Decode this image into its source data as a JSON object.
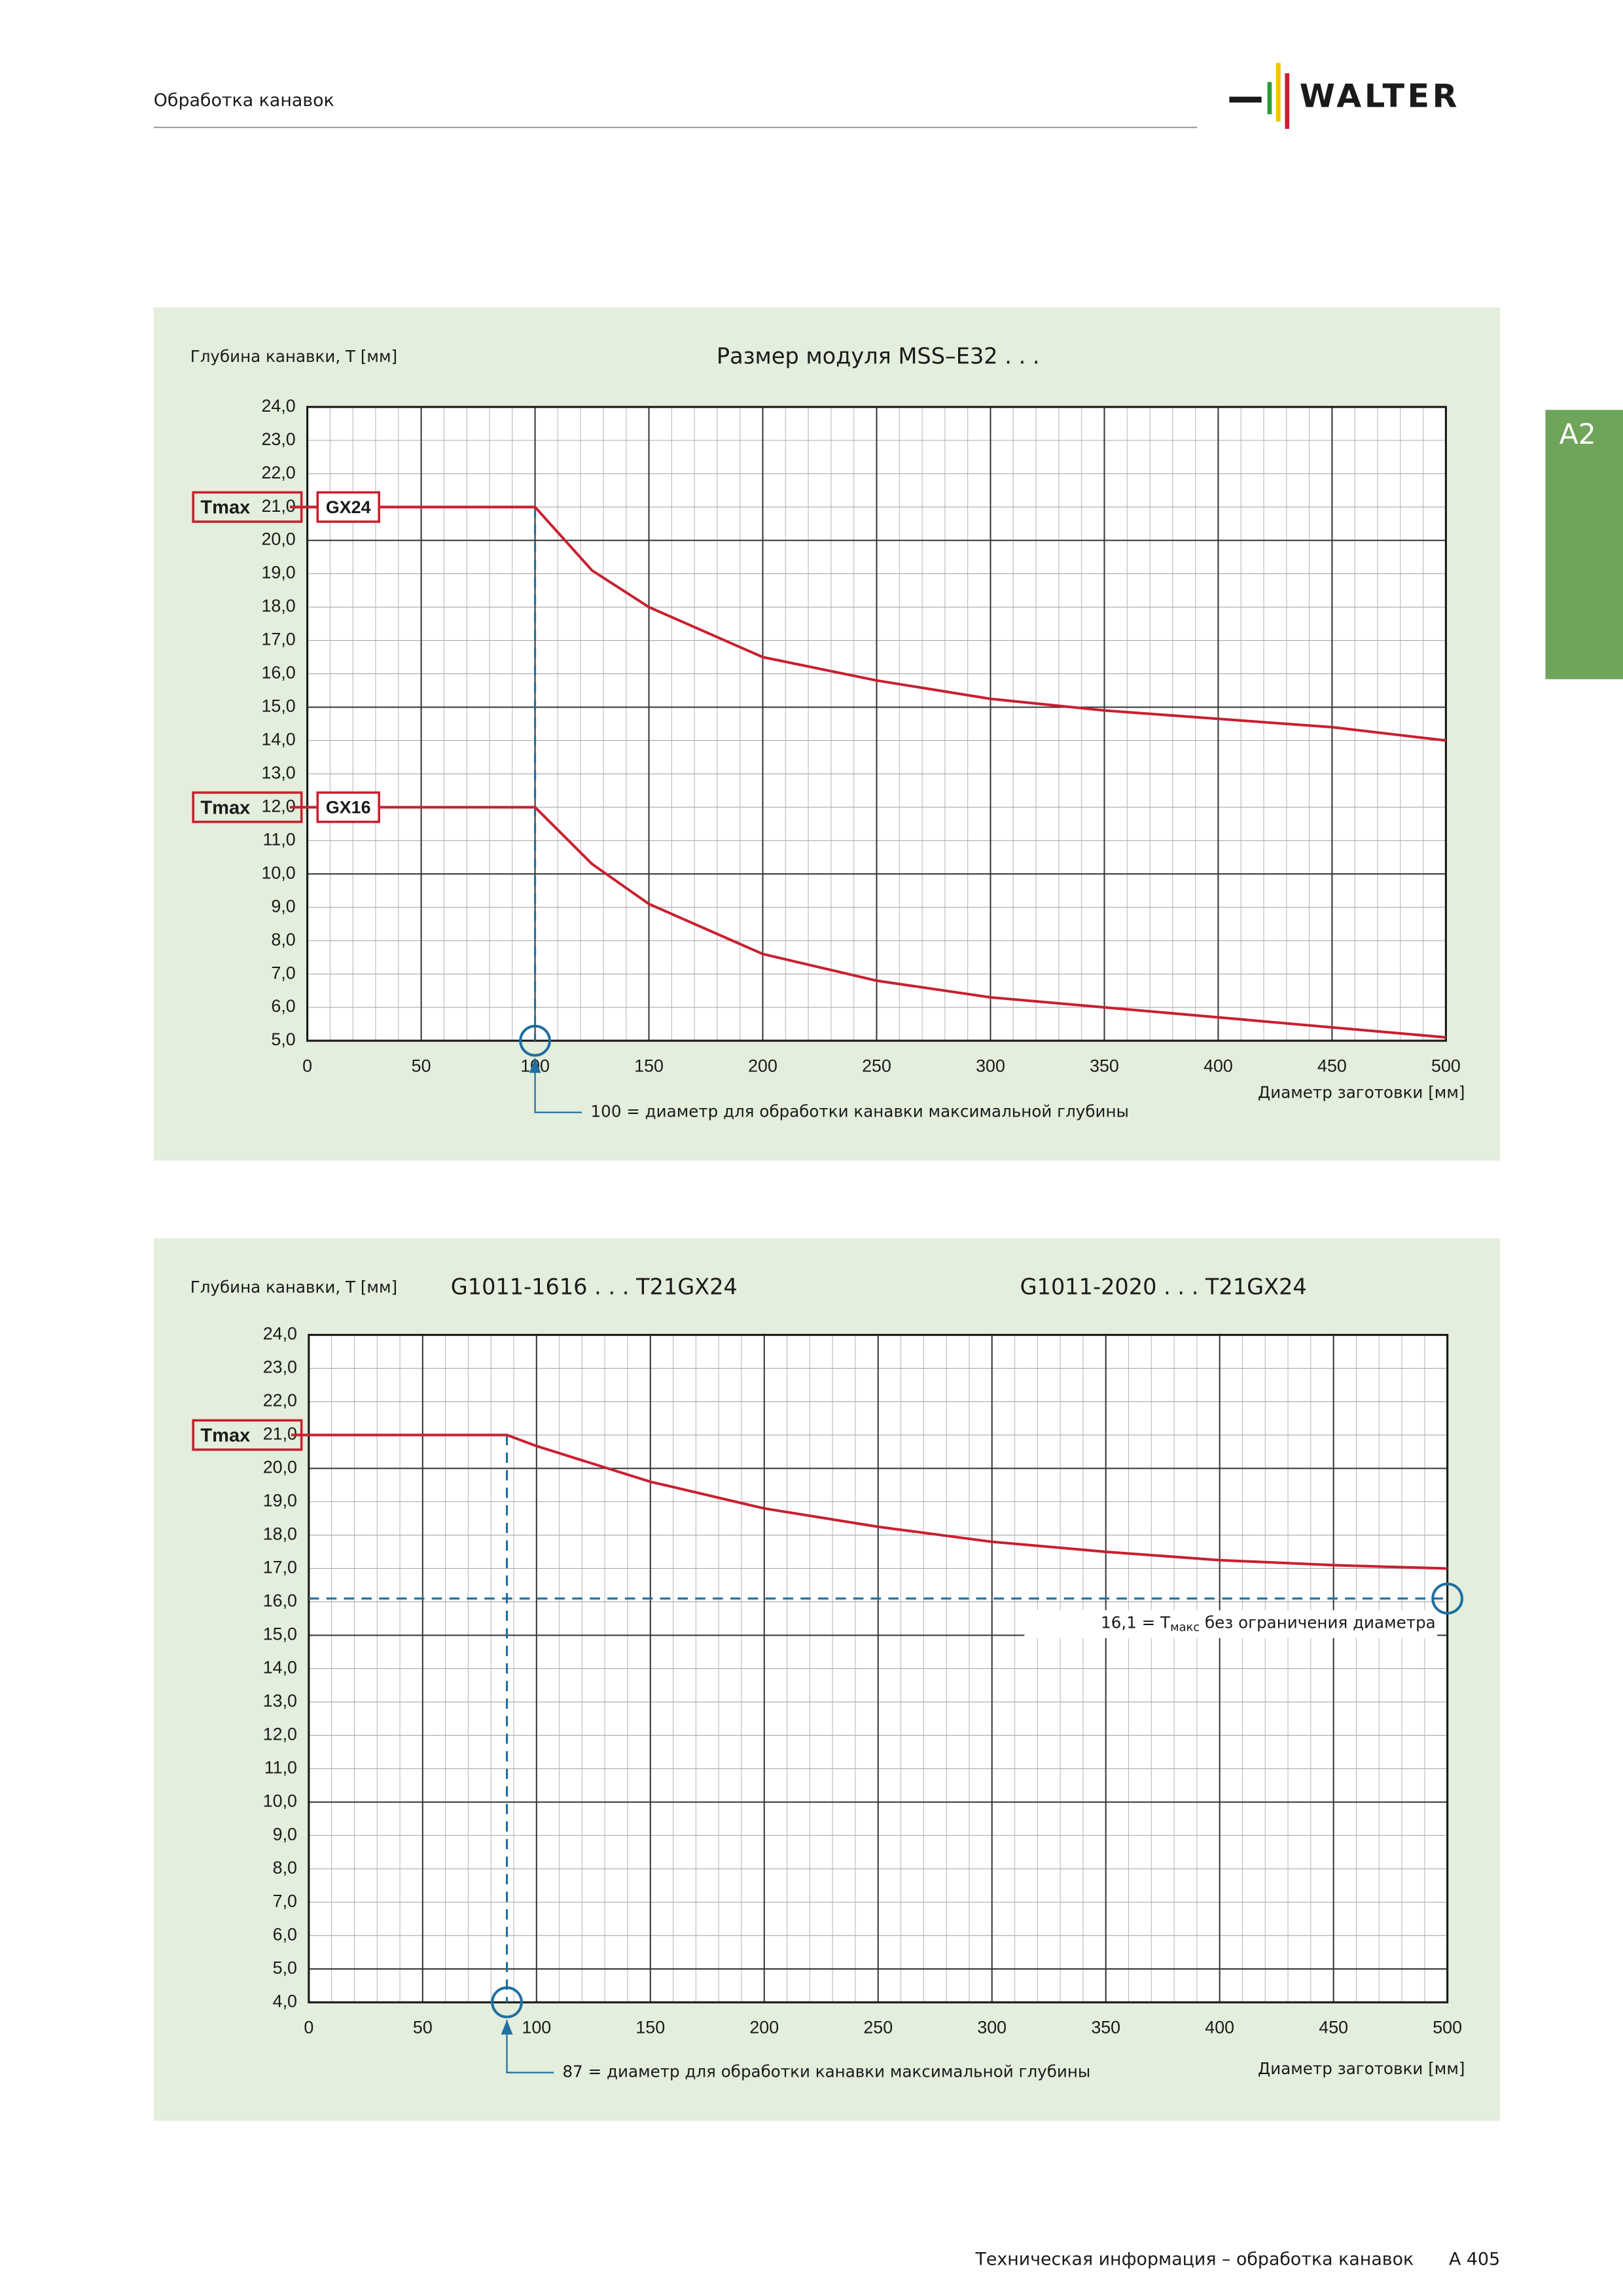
{
  "header": {
    "section": "Обработка канавок",
    "logo": "WALTER",
    "tab": "A2"
  },
  "footer": {
    "text": "Техническая информация – обработка канавок",
    "page": "A 405"
  },
  "chart_data": [
    {
      "type": "line",
      "title": "Размер модуля MSS–E32 . . .",
      "y_label": "Глубина канавки, T [мм]",
      "x_label": "Диаметр заготовки [мм]",
      "tmax_label": "Tmax",
      "x": [
        0,
        100,
        125,
        150,
        200,
        250,
        300,
        350,
        400,
        450,
        500
      ],
      "series": [
        {
          "name": "GX24",
          "color": "#c8202f",
          "values": [
            21.0,
            21.0,
            19.1,
            18.0,
            16.5,
            15.8,
            15.25,
            14.9,
            14.65,
            14.4,
            14.0
          ]
        },
        {
          "name": "GX16",
          "color": "#c8202f",
          "values": [
            12.0,
            12.0,
            10.3,
            9.1,
            7.6,
            6.8,
            6.3,
            6.0,
            5.7,
            5.4,
            5.1
          ]
        }
      ],
      "xlim": [
        0,
        500
      ],
      "xticks": [
        0,
        50,
        100,
        150,
        200,
        250,
        300,
        350,
        400,
        450,
        500
      ],
      "ylim": [
        5,
        24
      ],
      "yticks": [
        {
          "value": 5,
          "label": "5,0"
        },
        {
          "value": 6,
          "label": "6,0"
        },
        {
          "value": 7,
          "label": "7,0"
        },
        {
          "value": 8,
          "label": "8,0"
        },
        {
          "value": 9,
          "label": "9,0"
        },
        {
          "value": 10,
          "label": "10,0"
        },
        {
          "value": 11,
          "label": "11,0"
        },
        {
          "value": 12,
          "label": "12,0"
        },
        {
          "value": 13,
          "label": "13,0"
        },
        {
          "value": 14,
          "label": "14,0"
        },
        {
          "value": 15,
          "label": "15,0"
        },
        {
          "value": 16,
          "label": "16,0"
        },
        {
          "value": 17,
          "label": "17,0"
        },
        {
          "value": 18,
          "label": "18,0"
        },
        {
          "value": 19,
          "label": "19,0"
        },
        {
          "value": 20,
          "label": "20,0"
        },
        {
          "value": 21,
          "label": "21,0"
        },
        {
          "value": 22,
          "label": "22,0"
        },
        {
          "value": 23,
          "label": "23,0"
        },
        {
          "value": 24,
          "label": "24,0"
        }
      ],
      "grid": true,
      "reference_x": 100,
      "annotation": "100 = диаметр для обработки канавки максимальной глубины"
    },
    {
      "type": "line",
      "subtitles": [
        "G1011-1616 . . . T21GX24",
        "G1011-2020 . . . T21GX24"
      ],
      "y_label": "Глубина канавки, T [мм]",
      "x_label": "Диаметр заготовки [мм]",
      "tmax_label": "Tmax",
      "x": [
        0,
        87,
        100,
        150,
        200,
        250,
        300,
        350,
        400,
        450,
        500
      ],
      "series": [
        {
          "name": "T21GX24",
          "color": "#c8202f",
          "values": [
            21.0,
            21.0,
            20.67,
            19.6,
            18.8,
            18.25,
            17.8,
            17.5,
            17.25,
            17.1,
            17.0
          ]
        }
      ],
      "xlim": [
        0,
        500
      ],
      "xticks": [
        0,
        50,
        100,
        150,
        200,
        250,
        300,
        350,
        400,
        450,
        500
      ],
      "ylim": [
        4,
        24
      ],
      "yticks": [
        {
          "value": 4,
          "label": "4,0"
        },
        {
          "value": 5,
          "label": "5,0"
        },
        {
          "value": 6,
          "label": "6,0"
        },
        {
          "value": 7,
          "label": "7,0"
        },
        {
          "value": 8,
          "label": "8,0"
        },
        {
          "value": 9,
          "label": "9,0"
        },
        {
          "value": 10,
          "label": "10,0"
        },
        {
          "value": 11,
          "label": "11,0"
        },
        {
          "value": 12,
          "label": "12,0"
        },
        {
          "value": 13,
          "label": "13,0"
        },
        {
          "value": 14,
          "label": "14,0"
        },
        {
          "value": 15,
          "label": "15,0"
        },
        {
          "value": 16,
          "label": "16,0"
        },
        {
          "value": 17,
          "label": "17,0"
        },
        {
          "value": 18,
          "label": "18,0"
        },
        {
          "value": 19,
          "label": "19,0"
        },
        {
          "value": 20,
          "label": "20,0"
        },
        {
          "value": 21,
          "label": "21,0"
        },
        {
          "value": 22,
          "label": "22,0"
        },
        {
          "value": 23,
          "label": "23,0"
        },
        {
          "value": 24,
          "label": "24,0"
        }
      ],
      "grid": true,
      "reference_x": 87,
      "reference_y": 16.1,
      "annotation": "87 = диаметр для обработки канавки максимальной глубины",
      "annotation2": [
        "16,1 = T",
        "макс",
        " без ограничения диаметра"
      ]
    }
  ]
}
